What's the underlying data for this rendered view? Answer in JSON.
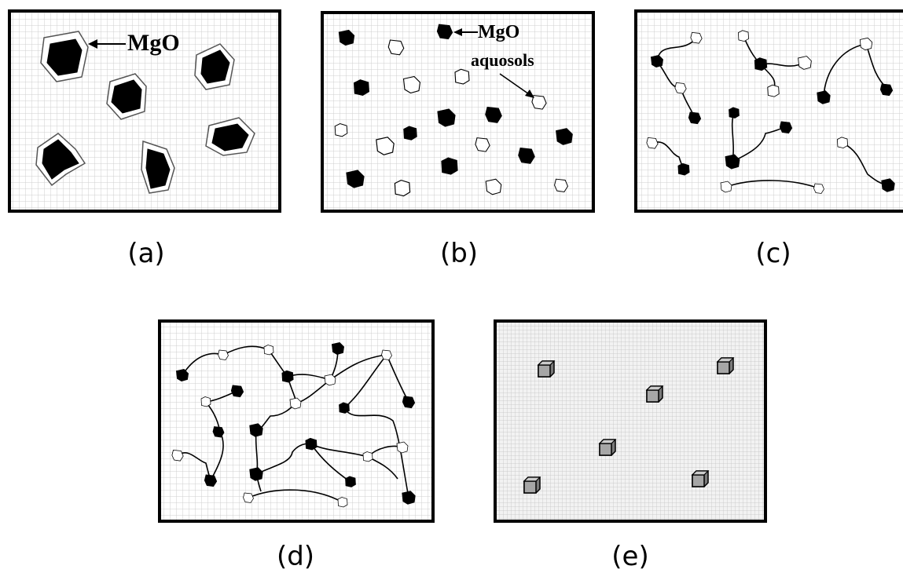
{
  "panels": {
    "a": {
      "caption": "(a)",
      "mgo_label": "MgO"
    },
    "b": {
      "caption": "(b)",
      "mgo_label": "MgO",
      "aquosols_label": "aquosols"
    },
    "c": {
      "caption": "(c)"
    },
    "d": {
      "caption": "(d)"
    },
    "e": {
      "caption": "(e)"
    }
  },
  "colors": {
    "frame_stroke": "#000000",
    "grid_line": "#cfcfcf",
    "mgo_particle": "#000000",
    "aquosol_particle": "#ffffff",
    "product_cube": "#999999"
  }
}
